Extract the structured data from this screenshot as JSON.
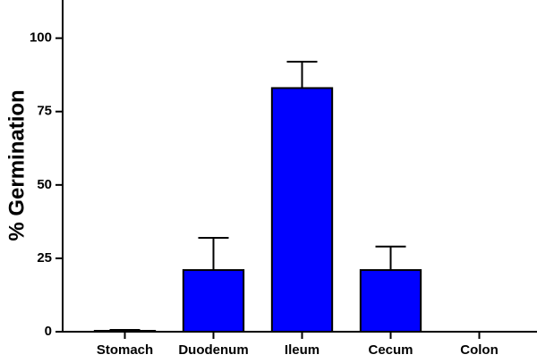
{
  "chart_data": {
    "type": "bar",
    "y_label": "% Germination",
    "categories": [
      "Stomach",
      "Duodenum",
      "Ileum",
      "Cecum",
      "Colon"
    ],
    "values": [
      0.3,
      21,
      83,
      21,
      0
    ],
    "errors": [
      0.3,
      11,
      9,
      8,
      0
    ],
    "color": "#0000ff",
    "ylim": [
      0,
      113
    ],
    "yticks": [
      0,
      25,
      50,
      75,
      100
    ],
    "grid": false
  }
}
